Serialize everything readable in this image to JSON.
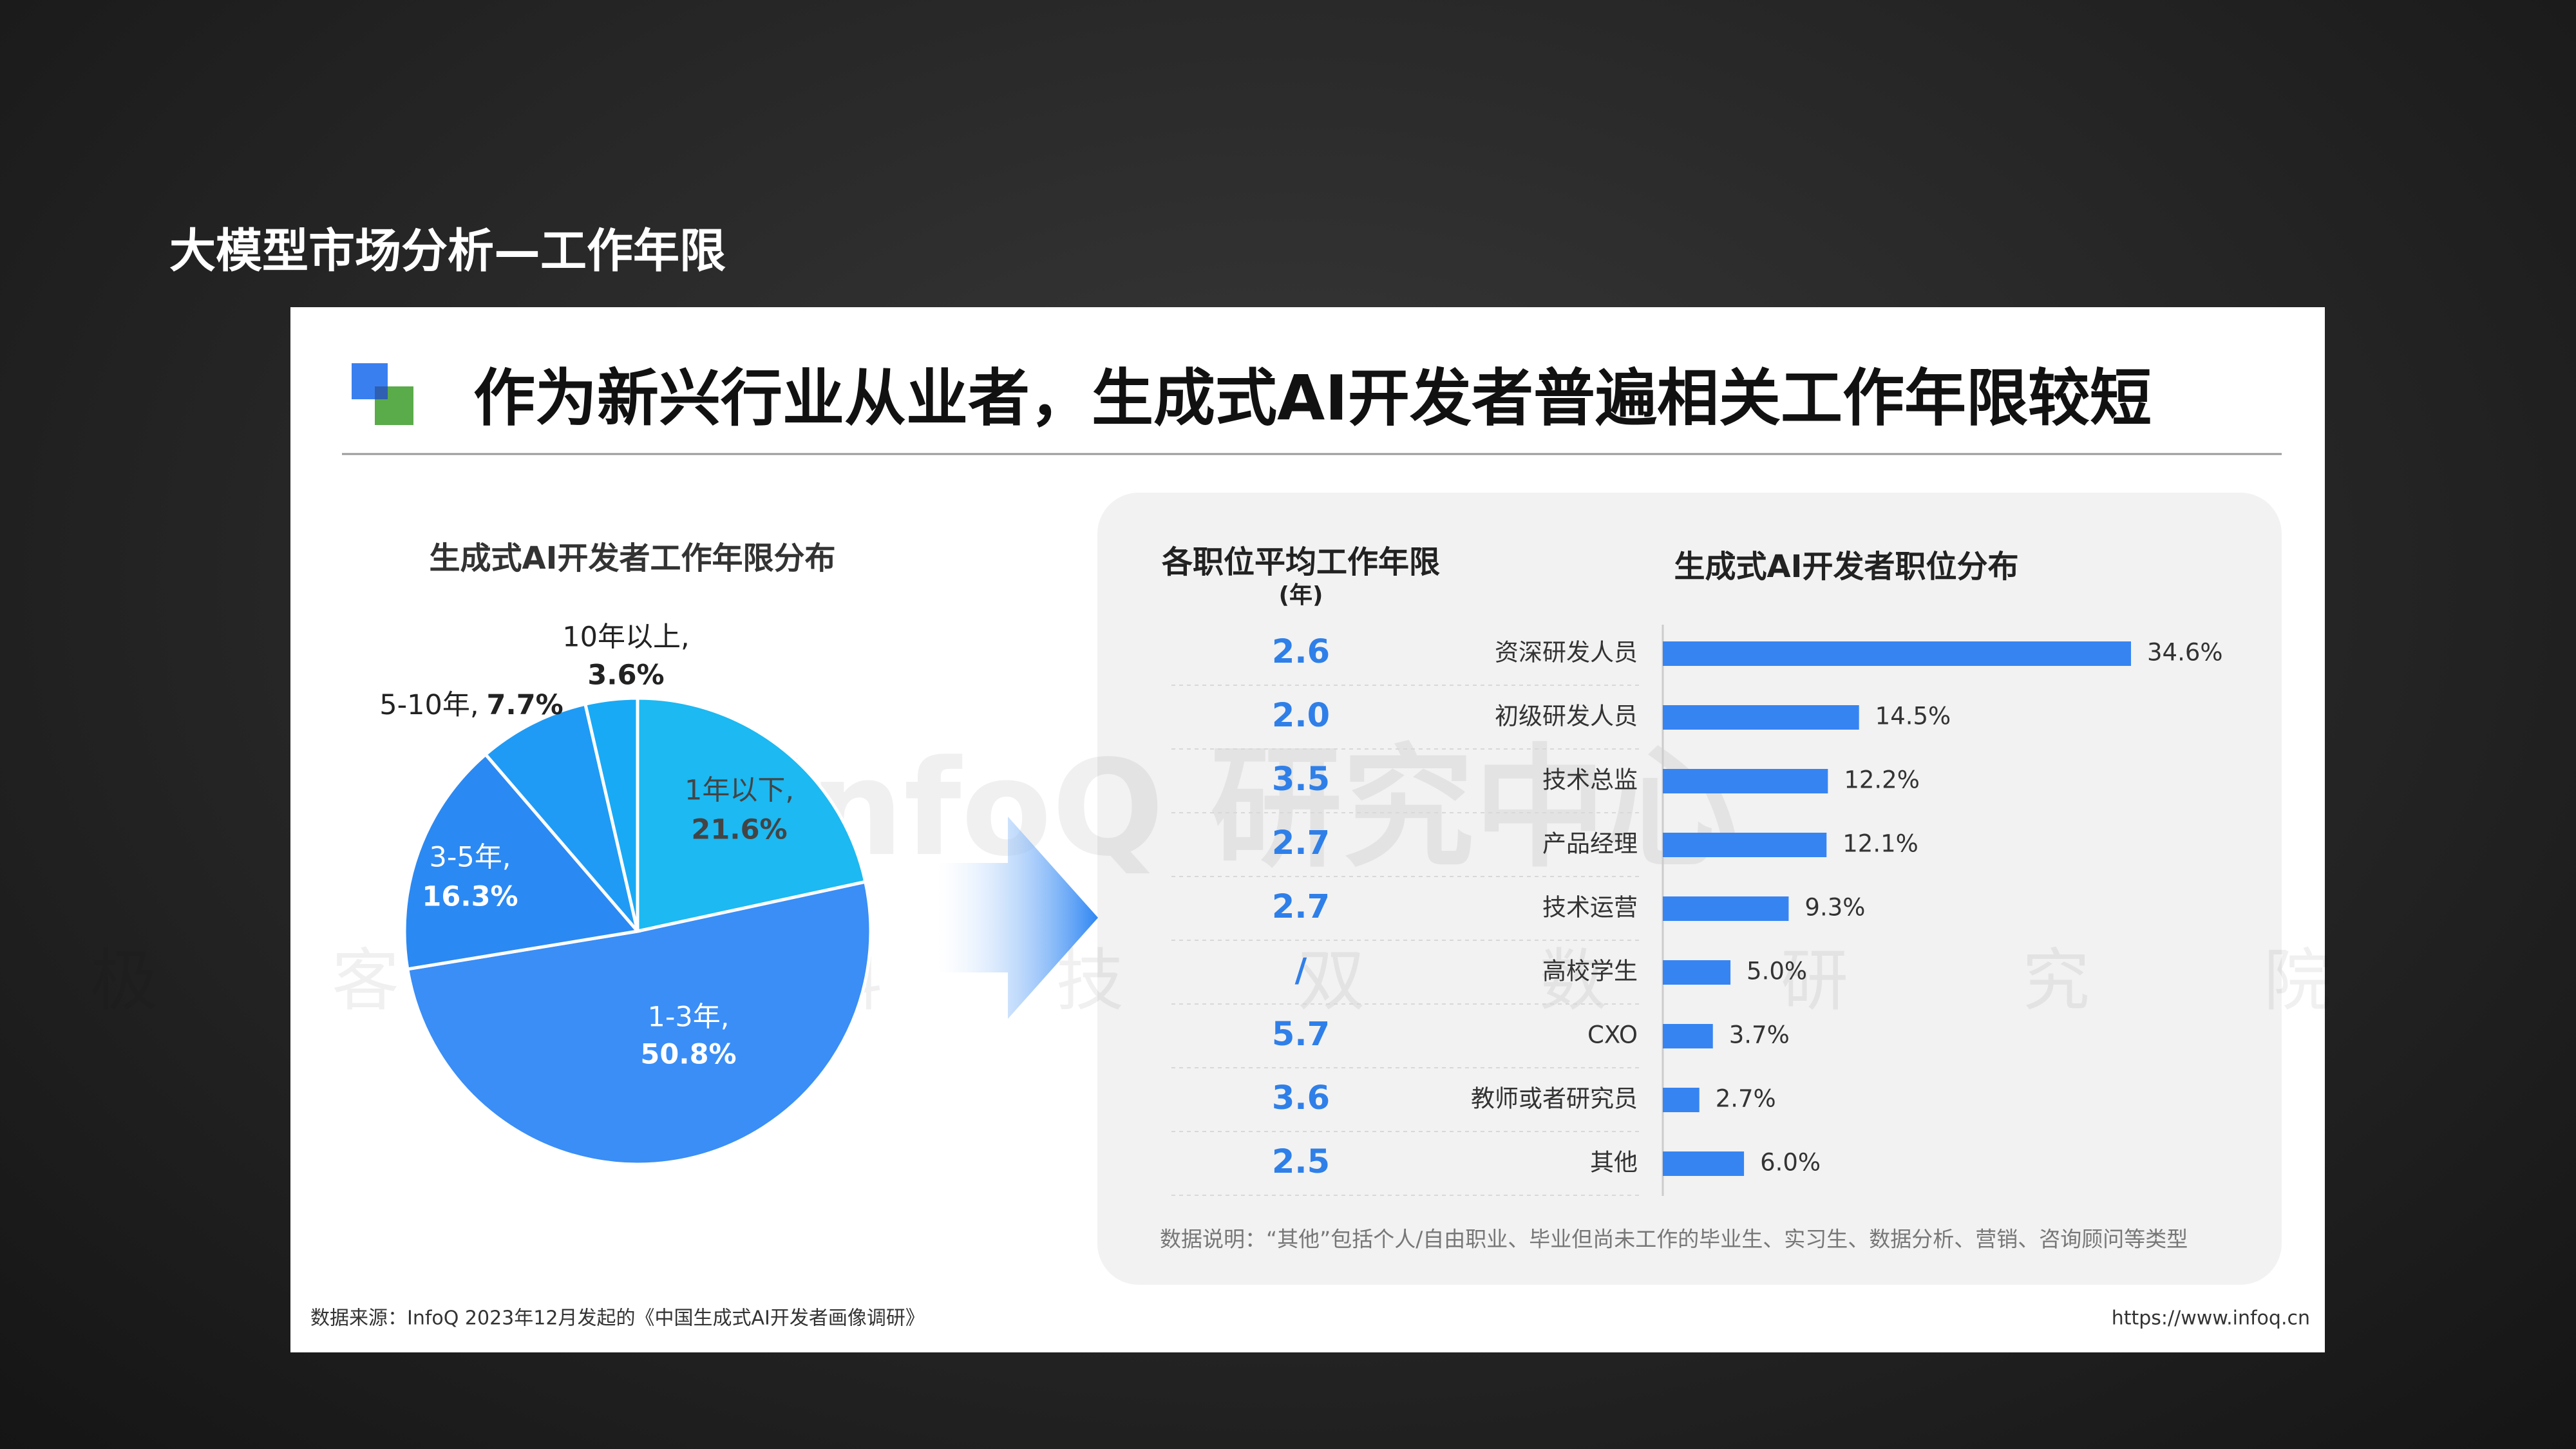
{
  "page_title": "大模型市场分析—工作年限",
  "headline": "作为新兴行业从业者，生成式AI开发者普遍相关工作年限较短",
  "watermark": [
    "InfoQ 研究中心",
    "极客邦科技双数研究院"
  ],
  "avg_years": {
    "title": "各职位平均工作年限",
    "unit": "(年)",
    "values": [
      "2.6",
      "2.0",
      "3.5",
      "2.7",
      "2.7",
      "/",
      "5.7",
      "3.6",
      "2.5"
    ]
  },
  "note": "数据说明：“其他”包括个人/自由职业、毕业但尚未工作的毕业生、实习生、数据分析、营销、咨询顾问等类型",
  "source": "数据来源：InfoQ 2023年12月发起的《中国生成式AI开发者画像调研》",
  "url": "https://www.infoq.cn",
  "chart_data": [
    {
      "type": "pie",
      "title": "生成式AI开发者工作年限分布",
      "categories": [
        "1年以下,",
        "1-3年,",
        "3-5年,",
        "5-10年,",
        "10年以上,"
      ],
      "values": [
        21.6,
        50.8,
        16.3,
        7.7,
        3.6
      ],
      "value_labels": [
        "21.6%",
        "50.8%",
        "16.3%",
        "7.7%",
        "3.6%"
      ],
      "colors": [
        "#1cb9f2",
        "#3a8ef6",
        "#2b89f3",
        "#1f9bf5",
        "#19aaf5"
      ]
    },
    {
      "type": "hbar",
      "title": "生成式AI开发者职位分布",
      "categories": [
        "资深研发人员",
        "初级研发人员",
        "技术总监",
        "产品经理",
        "技术运营",
        "高校学生",
        "CXO",
        "教师或者研究员",
        "其他"
      ],
      "values": [
        34.6,
        14.5,
        12.2,
        12.1,
        9.3,
        5.0,
        3.7,
        2.7,
        6.0
      ],
      "value_labels": [
        "34.6%",
        "14.5%",
        "12.2%",
        "12.1%",
        "9.3%",
        "5.0%",
        "3.7%",
        "2.7%",
        "6.0%"
      ],
      "color": "#3684f2"
    }
  ]
}
